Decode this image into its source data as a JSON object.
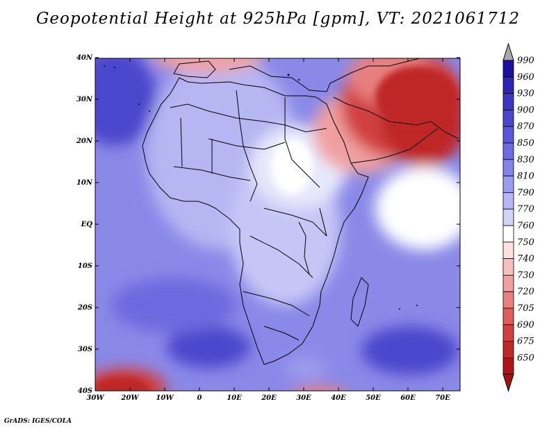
{
  "title": "Geopotential Height at 925hPa [gpm], VT: 2021061712",
  "credit": "GrADS: IGES/COLA",
  "map": {
    "lon_ticks": [
      "30W",
      "20W",
      "10W",
      "0",
      "10E",
      "20E",
      "30E",
      "40E",
      "50E",
      "60E",
      "70E"
    ],
    "lat_ticks": [
      "40N",
      "30N",
      "20N",
      "10N",
      "EQ",
      "10S",
      "20S",
      "30S",
      "40S"
    ]
  },
  "colorbar": {
    "levels": [
      "990",
      "960",
      "930",
      "900",
      "870",
      "850",
      "830",
      "810",
      "790",
      "770",
      "760",
      "750",
      "740",
      "730",
      "720",
      "705",
      "690",
      "675",
      "650"
    ],
    "colors": [
      "#1a0f9e",
      "#2d23b4",
      "#3d35c2",
      "#4c46cc",
      "#5b57d6",
      "#6d6bdf",
      "#8483e6",
      "#9c9ced",
      "#b6b6f3",
      "#d3d3f8",
      "#ffffff",
      "#fde0e0",
      "#f7c0c0",
      "#f0a0a0",
      "#e88080",
      "#de5e5e",
      "#d04040",
      "#bf2828",
      "#ac1616"
    ],
    "over_color": "#aaaaaa",
    "under_color": "#a31010"
  }
}
